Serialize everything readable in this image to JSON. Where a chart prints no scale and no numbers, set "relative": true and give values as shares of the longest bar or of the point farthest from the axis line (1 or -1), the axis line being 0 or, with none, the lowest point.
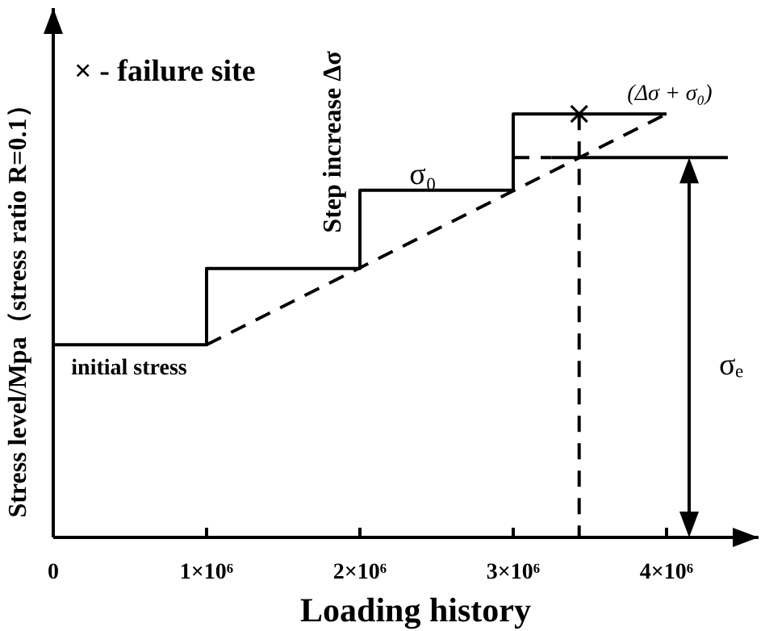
{
  "chart_data": {
    "type": "line",
    "relative": true,
    "xlabel": "Loading history",
    "ylabel": "Stress level/Mpa（stress ratio R=0.1）",
    "xlim": [
      0,
      4600000
    ],
    "xticks": [
      {
        "value": 0,
        "label": "0"
      },
      {
        "value": 1000000,
        "label": "1×10⁶"
      },
      {
        "value": 2000000,
        "label": "2×10⁶"
      },
      {
        "value": 3000000,
        "label": "3×10⁶"
      },
      {
        "value": 4000000,
        "label": "4×10⁶"
      }
    ],
    "grid": false,
    "series": [
      {
        "type": "step",
        "color": "#000000",
        "line_style": "solid",
        "marker": "none",
        "x": [
          0,
          1000000,
          2000000,
          3000000,
          4000000
        ],
        "values": [
          0.455,
          0.635,
          0.82,
          1.0,
          1.0
        ]
      },
      {
        "type": "line",
        "color": "#000000",
        "line_style": "dashed",
        "marker": "none",
        "x": [
          1000000,
          4000000
        ],
        "values": [
          0.455,
          1.0
        ]
      },
      {
        "type": "line",
        "color": "#000000",
        "line_style": "dashed",
        "marker": "none",
        "x": [
          3000000,
          3250000
        ],
        "values": [
          0.897,
          0.897
        ]
      },
      {
        "type": "line",
        "color": "#000000",
        "line_style": "solid",
        "marker": "none",
        "x": [
          3250000,
          4400000
        ],
        "values": [
          0.897,
          0.897
        ]
      },
      {
        "type": "line",
        "color": "#000000",
        "line_style": "dashed",
        "marker": "none",
        "x": [
          3430000,
          3430000
        ],
        "values": [
          1.0,
          0
        ]
      },
      {
        "type": "scatter",
        "color": "#000000",
        "marker": "cross",
        "x": [
          3430000
        ],
        "values": [
          1.0
        ]
      }
    ],
    "annotations": [
      "× - failure site",
      "Step increase Δσ",
      "initial stress",
      "σ₀",
      "(Δσ + σ₀)",
      "σₑ"
    ]
  }
}
